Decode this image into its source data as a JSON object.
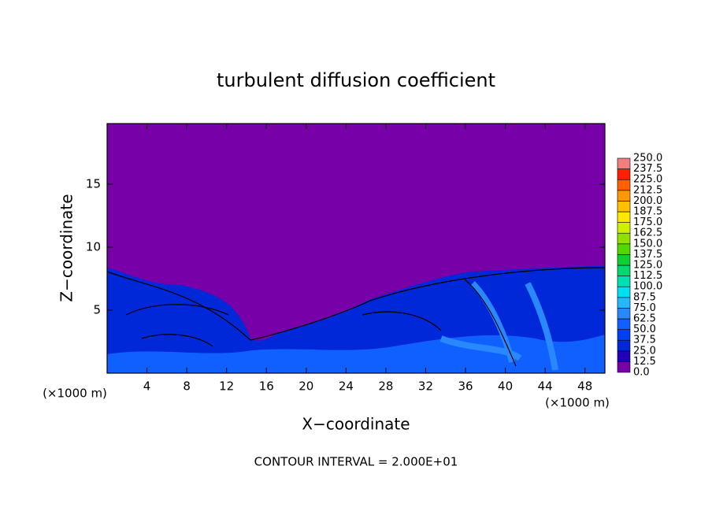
{
  "chart_data": {
    "type": "contour",
    "title": "turbulent diffusion coefficient",
    "x_label": "X−coordinate",
    "y_label": "Z−coordinate",
    "x_unit_label": "(×1000 m)",
    "footer": "CONTOUR INTERVAL = 2.000E+01",
    "xlim": [
      0,
      50
    ],
    "xticks": [
      4,
      8,
      12,
      16,
      20,
      24,
      28,
      32,
      36,
      40,
      44,
      48
    ],
    "ylim": [
      0,
      19.8
    ],
    "yticks": [
      5,
      10,
      15
    ],
    "colorbar": {
      "levels": [
        {
          "value": 0,
          "label": "0.0"
        },
        {
          "value": 12.5,
          "label": "12.5"
        },
        {
          "value": 25,
          "label": "25.0"
        },
        {
          "value": 37.5,
          "label": "37.5"
        },
        {
          "value": 50,
          "label": "50.0"
        },
        {
          "value": 62.5,
          "label": "62.5"
        },
        {
          "value": 75,
          "label": "75.0"
        },
        {
          "value": 87.5,
          "label": "87.5"
        },
        {
          "value": 100,
          "label": "100.0"
        },
        {
          "value": 112.5,
          "label": "112.5"
        },
        {
          "value": 125,
          "label": "125.0"
        },
        {
          "value": 137.5,
          "label": "137.5"
        },
        {
          "value": 150,
          "label": "150.0"
        },
        {
          "value": 162.5,
          "label": "162.5"
        },
        {
          "value": 175,
          "label": "175.0"
        },
        {
          "value": 187.5,
          "label": "187.5"
        },
        {
          "value": 200,
          "label": "200.0"
        },
        {
          "value": 212.5,
          "label": "212.5"
        },
        {
          "value": 225,
          "label": "225.0"
        },
        {
          "value": 237.5,
          "label": "237.5"
        },
        {
          "value": 250,
          "label": "250.0"
        }
      ],
      "colors": [
        "#7800a8",
        "#2200b8",
        "#0028d8",
        "#0040f0",
        "#1060ff",
        "#2a88ff",
        "#20b8ff",
        "#00e0f0",
        "#00e0b0",
        "#00d870",
        "#10d030",
        "#50d800",
        "#90e000",
        "#d0f000",
        "#ffe800",
        "#ffc000",
        "#ff9800",
        "#ff6000",
        "#ff2000",
        "#f08080"
      ]
    }
  }
}
